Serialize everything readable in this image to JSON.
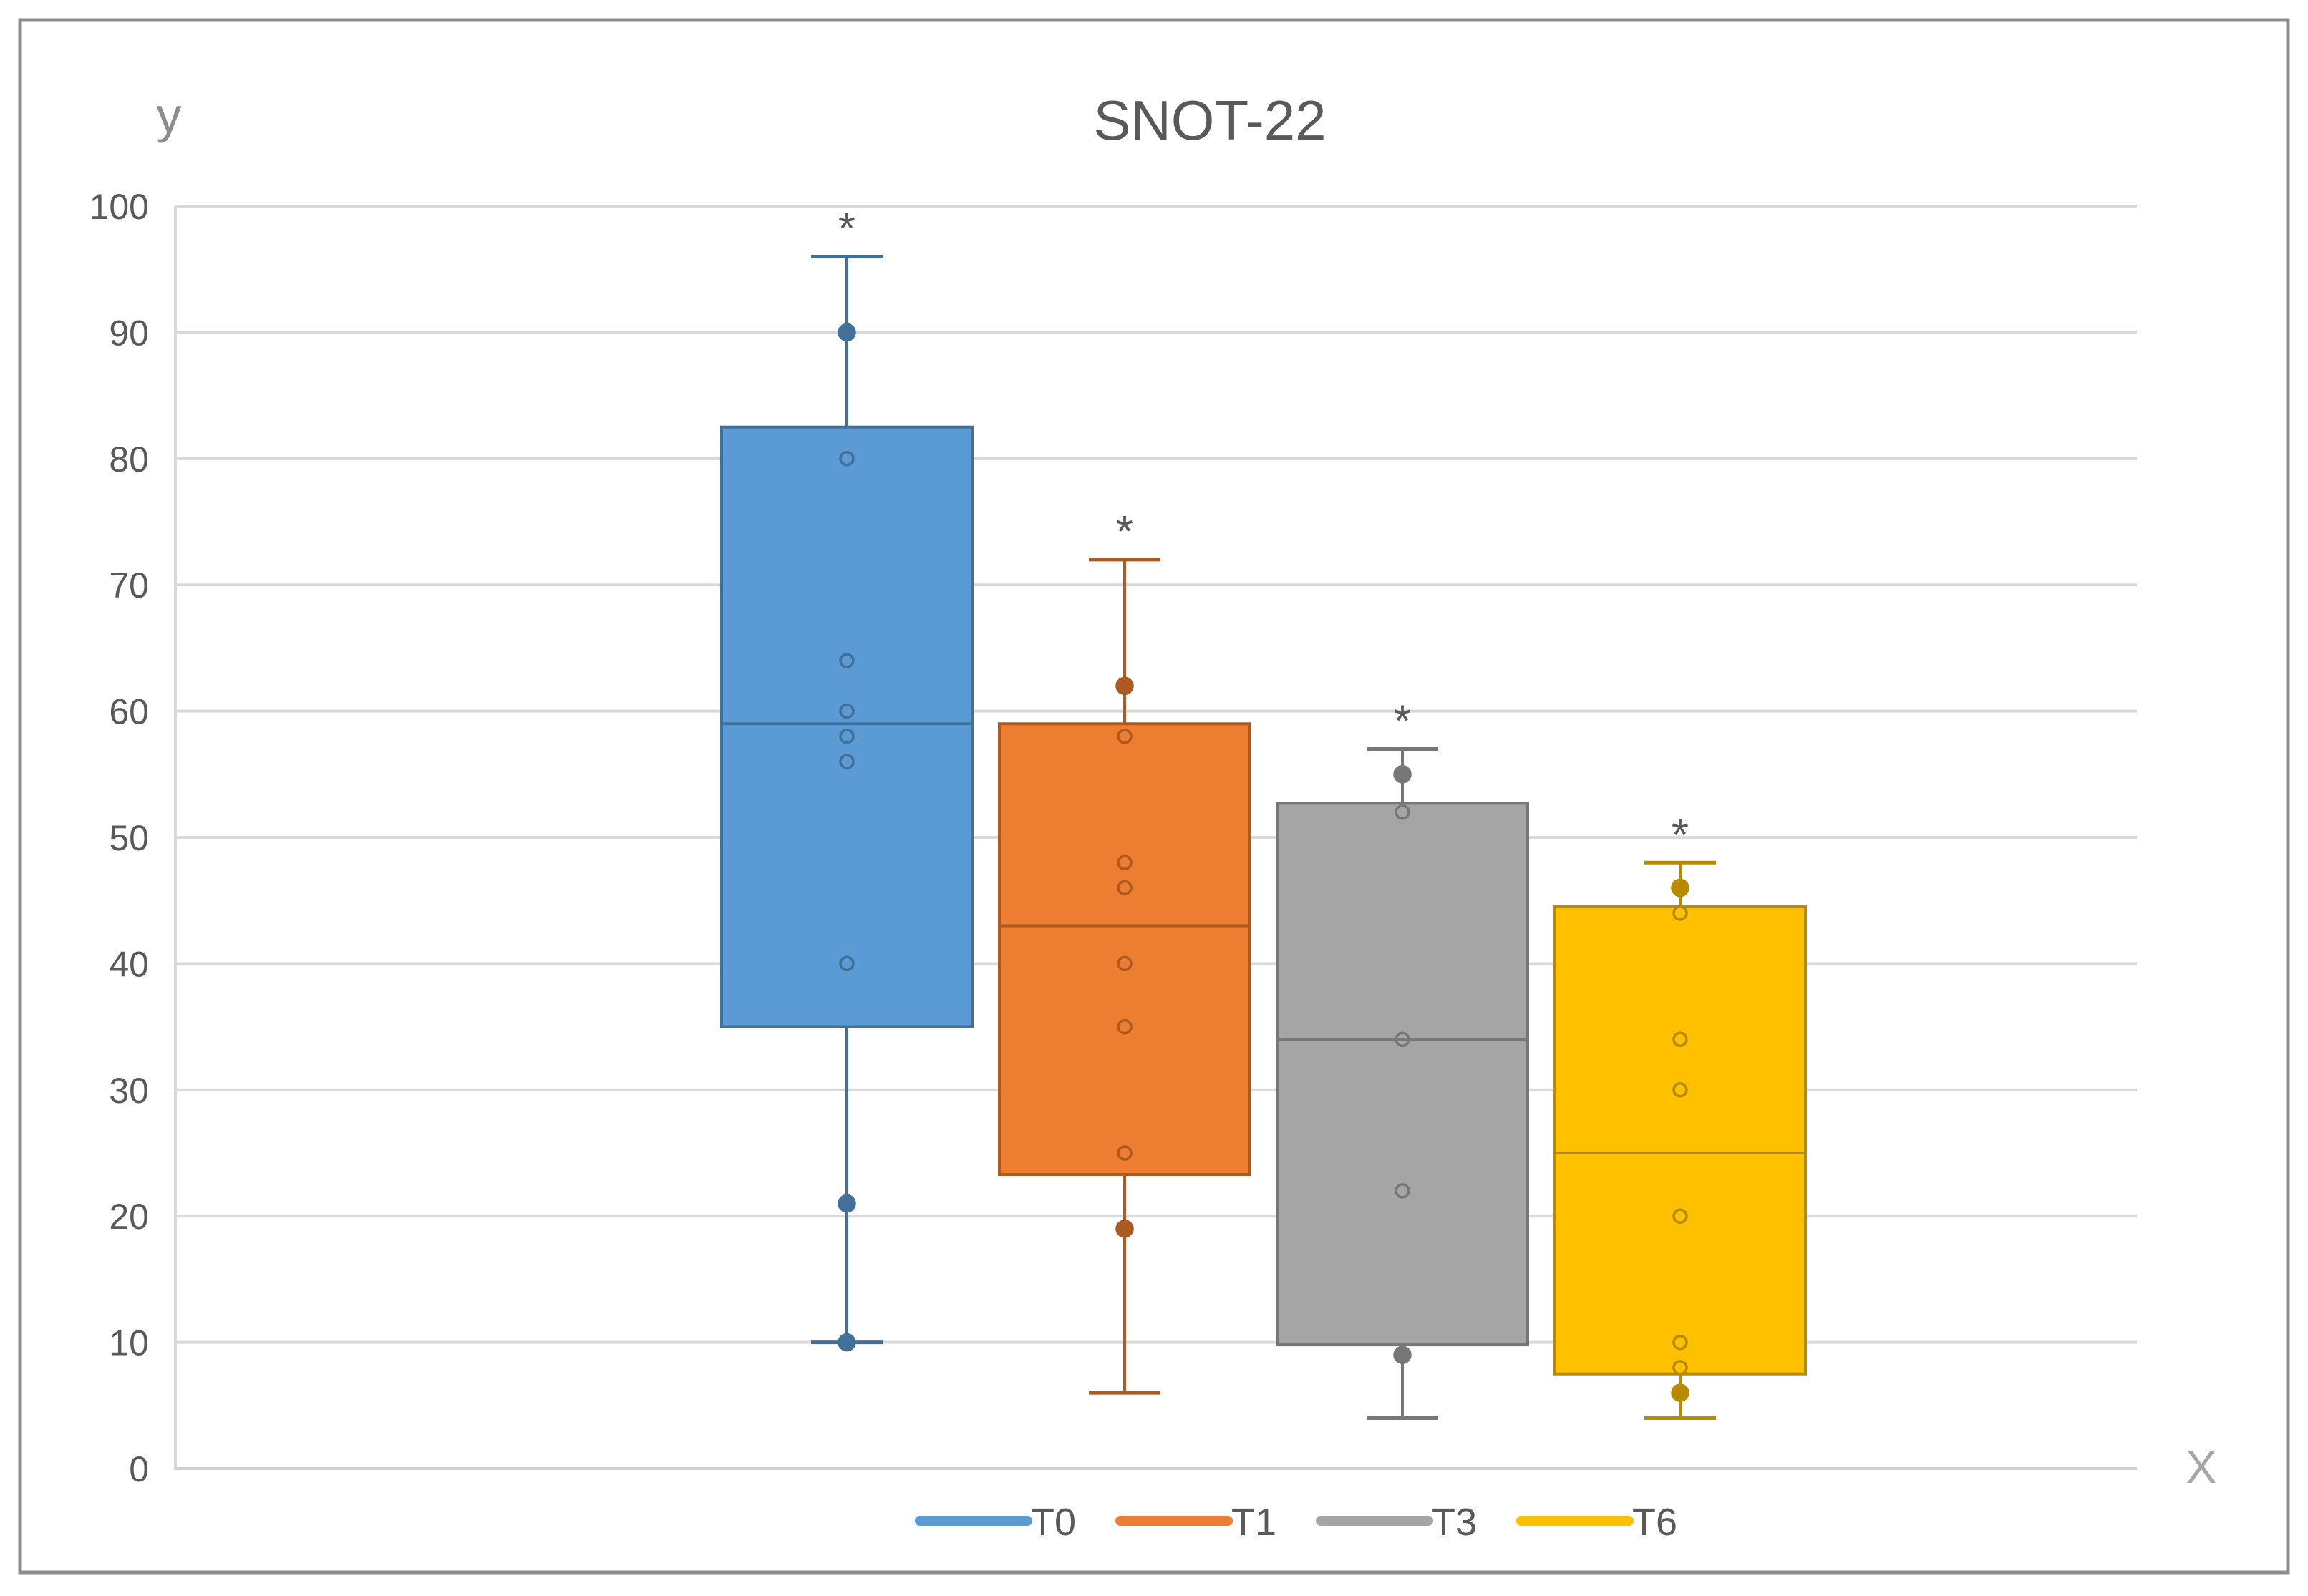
{
  "chart_data": {
    "type": "boxplot",
    "title": "SNOT-22",
    "ylabel": "y",
    "xlabel": "X",
    "ylim": [
      0,
      100
    ],
    "yticks": [
      0,
      10,
      20,
      30,
      40,
      50,
      60,
      70,
      80,
      90,
      100
    ],
    "grid": true,
    "legend_position": "bottom",
    "series": [
      {
        "name": "T0",
        "color": "#5B9BD5",
        "whisker_low": 10,
        "q1": 35,
        "median": 59,
        "q3": 82.5,
        "whisker_high": 96,
        "points": [
          10,
          21,
          40,
          56,
          58,
          60,
          64,
          80,
          90
        ],
        "annotation": "*"
      },
      {
        "name": "T1",
        "color": "#ED7D31",
        "whisker_low": 6,
        "q1": 23.3,
        "median": 43,
        "q3": 59,
        "whisker_high": 72,
        "points": [
          19,
          25,
          35,
          40,
          46,
          48,
          58,
          62
        ],
        "annotation": "*"
      },
      {
        "name": "T3",
        "color": "#A5A5A5",
        "whisker_low": 4,
        "q1": 9.8,
        "median": 34,
        "q3": 52.7,
        "whisker_high": 57,
        "points": [
          9,
          22,
          34,
          52,
          55
        ],
        "annotation": "*"
      },
      {
        "name": "T6",
        "color": "#FFC000",
        "whisker_low": 4,
        "q1": 7.5,
        "median": 25,
        "q3": 44.5,
        "whisker_high": 48,
        "points": [
          6,
          8,
          10,
          20,
          30,
          34,
          44,
          46
        ],
        "annotation": "*"
      }
    ]
  }
}
